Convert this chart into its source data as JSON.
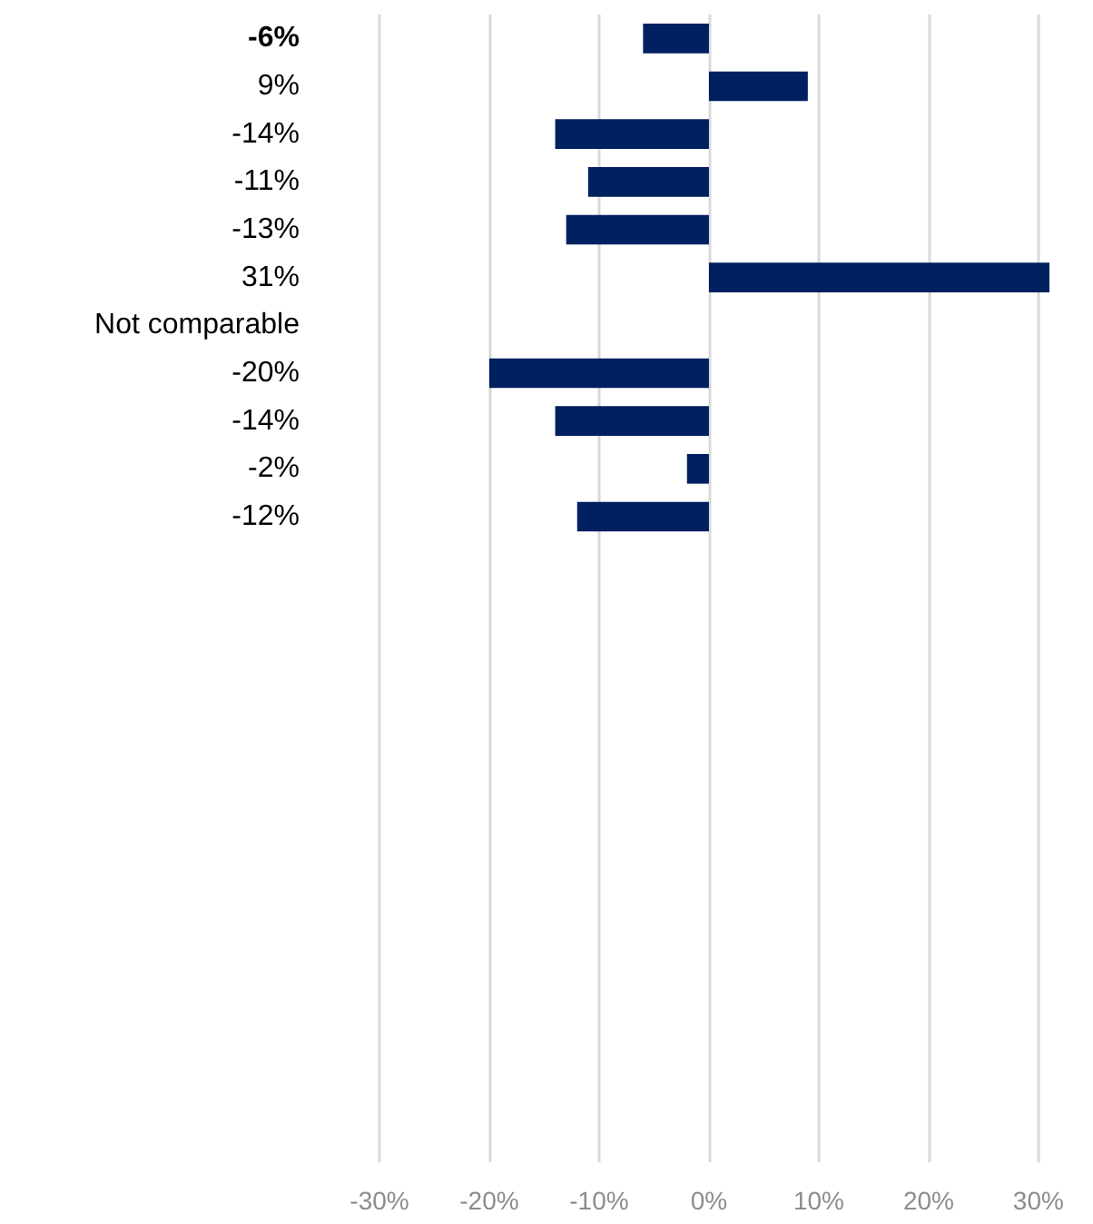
{
  "chart_data": {
    "type": "bar",
    "orientation": "horizontal",
    "categories": [
      "-6%",
      "9%",
      "-14%",
      "-11%",
      "-13%",
      "31%",
      "Not comparable",
      "-20%",
      "-14%",
      "-2%",
      "-12%",
      null,
      null,
      null,
      null,
      null,
      null,
      null,
      null,
      null,
      null,
      null,
      null,
      null
    ],
    "values": [
      -6,
      9,
      -14,
      -11,
      -13,
      31,
      null,
      -20,
      -14,
      -2,
      -12,
      null,
      null,
      null,
      null,
      null,
      null,
      null,
      null,
      null,
      null,
      null,
      null,
      null
    ],
    "color": "#002060",
    "xlim": [
      -30,
      31
    ],
    "xticks": [
      {
        "value": -30,
        "label": "-30%"
      },
      {
        "value": -20,
        "label": "-20%"
      },
      {
        "value": -10,
        "label": "-10%"
      },
      {
        "value": 0,
        "label": "0%"
      },
      {
        "value": 10,
        "label": "10%"
      },
      {
        "value": 20,
        "label": "20%"
      },
      {
        "value": 30,
        "label": "30%"
      }
    ],
    "grid": "x"
  }
}
